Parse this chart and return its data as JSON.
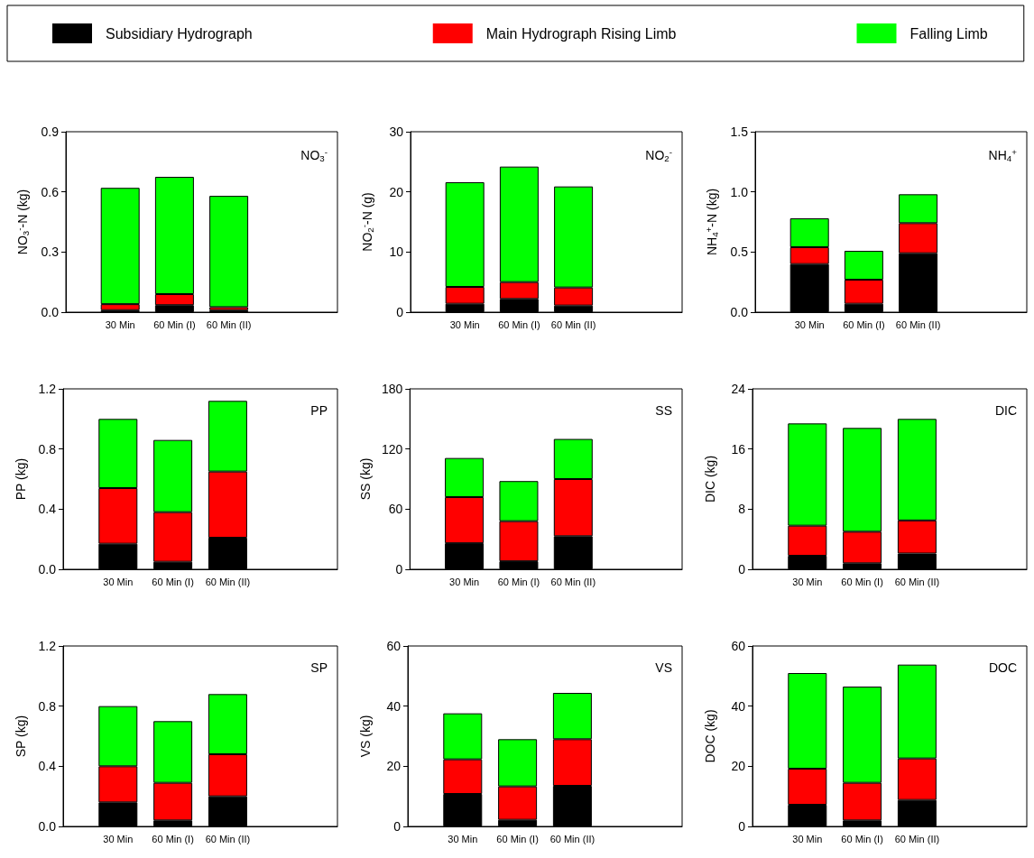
{
  "chart_data": [
    {
      "type": "bar",
      "stacked": true,
      "annotations": [
        "NO$_{3}$$^{-}$"
      ],
      "ylabel": "NO$_{3}$$^{-}$-N (kg)",
      "categories": [
        "30 Min",
        "60 Min (I)",
        "60 Min (II)"
      ],
      "ylim": [
        0,
        0.9
      ],
      "yticks": [
        {
          "value": 0,
          "label": "0.0"
        },
        {
          "value": 0.3,
          "label": "0.3"
        },
        {
          "value": 0.6,
          "label": "0.6"
        },
        {
          "value": 0.9,
          "label": "0.9"
        }
      ],
      "legend": "top",
      "series": [
        {
          "name": "Subsidiary Hydrograph",
          "color": "#000000",
          "values": [
            0.01,
            0.035,
            0.01
          ]
        },
        {
          "name": "Main Hydrograph Rising Limb",
          "color": "#ff0000",
          "values": [
            0.03,
            0.055,
            0.015
          ]
        },
        {
          "name": "Falling Limb",
          "color": "#00ff00",
          "values": [
            0.58,
            0.585,
            0.555
          ]
        }
      ]
    },
    {
      "type": "bar",
      "stacked": true,
      "annotations": [
        "NO$_{2}$$^{-}$"
      ],
      "ylabel": "NO$_{2}$$^{-}$-N (g)",
      "categories": [
        "30 Min",
        "60 Min (I)",
        "60 Min (II)"
      ],
      "ylim": [
        0,
        30
      ],
      "yticks": [
        0,
        10,
        20,
        30
      ],
      "series": [
        {
          "color": "#000000",
          "values": [
            1.4,
            2.2,
            1.1
          ]
        },
        {
          "color": "#ff0000",
          "values": [
            2.8,
            2.8,
            3.0
          ]
        },
        {
          "color": "#00ff00",
          "values": [
            17.4,
            19.2,
            16.8
          ]
        }
      ]
    },
    {
      "type": "bar",
      "stacked": true,
      "annotations": [
        "NH$_{4}$$^{+}$"
      ],
      "ylabel": "NH$_{4}$$^{+}$-N (kg)",
      "categories": [
        "30 Min",
        "60 Min (I)",
        "60 Min (II)"
      ],
      "ylim": [
        0,
        1.5
      ],
      "yticks": [
        {
          "value": 0,
          "label": "0.0"
        },
        {
          "value": 0.5,
          "label": "0.5"
        },
        {
          "value": 1,
          "label": "1.0"
        },
        {
          "value": 1.5,
          "label": "1.5"
        }
      ],
      "series": [
        {
          "color": "#000000",
          "values": [
            0.4,
            0.07,
            0.49
          ]
        },
        {
          "color": "#ff0000",
          "values": [
            0.14,
            0.2,
            0.25
          ]
        },
        {
          "color": "#00ff00",
          "values": [
            0.24,
            0.24,
            0.24
          ]
        }
      ]
    },
    {
      "type": "bar",
      "stacked": true,
      "annotations": [
        "PP"
      ],
      "ylabel": "PP (kg)",
      "categories": [
        "30 Min",
        "60 Min (I)",
        "60 Min (II)"
      ],
      "ylim": [
        0,
        1.2
      ],
      "yticks": [
        {
          "value": 0,
          "label": "0.0"
        },
        {
          "value": 0.4,
          "label": "0.4"
        },
        {
          "value": 0.8,
          "label": "0.8"
        },
        {
          "value": 1.2,
          "label": "1.2"
        }
      ],
      "series": [
        {
          "color": "#000000",
          "values": [
            0.17,
            0.05,
            0.21
          ]
        },
        {
          "color": "#ff0000",
          "values": [
            0.37,
            0.33,
            0.44
          ]
        },
        {
          "color": "#00ff00",
          "values": [
            0.46,
            0.48,
            0.47
          ]
        }
      ]
    },
    {
      "type": "bar",
      "stacked": true,
      "annotations": [
        "SS"
      ],
      "ylabel": "SS (kg)",
      "categories": [
        "30 Min",
        "60 Min (I)",
        "60 Min (II)"
      ],
      "ylim": [
        0,
        180
      ],
      "yticks": [
        0,
        60,
        120,
        180
      ],
      "series": [
        {
          "color": "#000000",
          "values": [
            26,
            8,
            33
          ]
        },
        {
          "color": "#ff0000",
          "values": [
            46,
            40,
            57
          ]
        },
        {
          "color": "#00ff00",
          "values": [
            39,
            40,
            40
          ]
        }
      ]
    },
    {
      "type": "bar",
      "stacked": true,
      "annotations": [
        "DIC"
      ],
      "ylabel": "DIC (kg)",
      "categories": [
        "30 Min",
        "60 Min (I)",
        "60 Min (II)"
      ],
      "ylim": [
        0,
        24
      ],
      "yticks": [
        0,
        8,
        16,
        24
      ],
      "series": [
        {
          "color": "#000000",
          "values": [
            1.8,
            0.8,
            2.1
          ]
        },
        {
          "color": "#ff0000",
          "values": [
            4.0,
            4.2,
            4.4
          ]
        },
        {
          "color": "#00ff00",
          "values": [
            13.6,
            13.8,
            13.5
          ]
        }
      ]
    },
    {
      "type": "bar",
      "stacked": true,
      "annotations": [
        "SP"
      ],
      "ylabel": "SP (kg)",
      "categories": [
        "30 Min",
        "60 Min (I)",
        "60 Min (II)"
      ],
      "ylim": [
        0,
        1.2
      ],
      "yticks": [
        {
          "value": 0,
          "label": "0.0"
        },
        {
          "value": 0.4,
          "label": "0.4"
        },
        {
          "value": 0.8,
          "label": "0.8"
        },
        {
          "value": 1.2,
          "label": "1.2"
        }
      ],
      "series": [
        {
          "color": "#000000",
          "values": [
            0.16,
            0.04,
            0.2
          ]
        },
        {
          "color": "#ff0000",
          "values": [
            0.24,
            0.25,
            0.28
          ]
        },
        {
          "color": "#00ff00",
          "values": [
            0.4,
            0.41,
            0.4
          ]
        }
      ]
    },
    {
      "type": "bar",
      "stacked": true,
      "annotations": [
        "VS"
      ],
      "ylabel": "VS (kg)",
      "categories": [
        "30 Min",
        "60 Min (I)",
        "60 Min (II)"
      ],
      "ylim": [
        0,
        60
      ],
      "yticks": [
        0,
        20,
        40,
        60
      ],
      "series": [
        {
          "color": "#000000",
          "values": [
            10.8,
            2.2,
            13.5
          ]
        },
        {
          "color": "#ff0000",
          "values": [
            11.5,
            11.1,
            15.5
          ]
        },
        {
          "color": "#00ff00",
          "values": [
            15.3,
            15.7,
            15.4
          ]
        }
      ]
    },
    {
      "type": "bar",
      "stacked": true,
      "annotations": [
        "DOC"
      ],
      "ylabel": "DOC (kg)",
      "categories": [
        "30 Min",
        "60 Min (I)",
        "60 Min (II)"
      ],
      "ylim": [
        0,
        60
      ],
      "yticks": [
        0,
        20,
        40,
        60
      ],
      "series": [
        {
          "color": "#000000",
          "values": [
            7.2,
            2,
            8.8
          ]
        },
        {
          "color": "#ff0000",
          "values": [
            12,
            12.5,
            13.8
          ]
        },
        {
          "color": "#00ff00",
          "values": [
            31.8,
            32,
            31.2
          ]
        }
      ]
    }
  ]
}
